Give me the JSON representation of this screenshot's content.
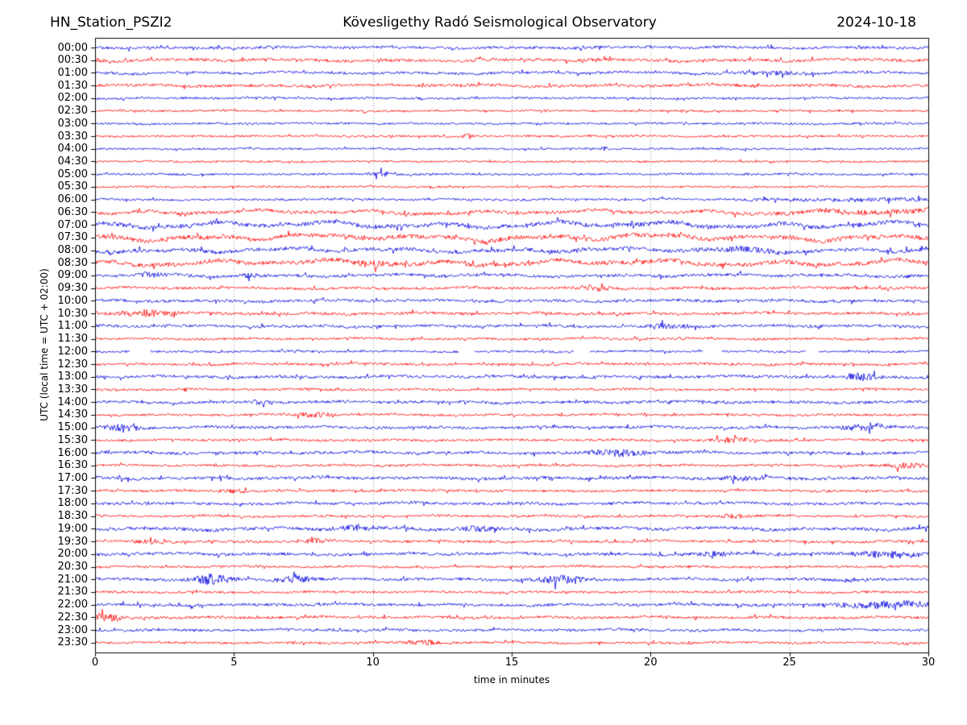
{
  "header": {
    "station": "HN_Station_PSZI2",
    "observatory": "Kövesligethy Radó Seismological Observatory",
    "date": "2024-10-18"
  },
  "chart_data": {
    "type": "line",
    "subtype": "helicorder-daily-seismogram",
    "title": "HN_Station_PSZI2 — Kövesligethy Radó Seismological Observatory — 2024-10-18",
    "xlabel": "time in minutes",
    "ylabel": "UTC (local time = UTC + 02:00)",
    "x_range": [
      0,
      30
    ],
    "x_ticks": [
      0,
      5,
      10,
      15,
      20,
      25,
      30
    ],
    "minutes_per_row": 30,
    "grid": "vertical dotted lines at 5-minute intervals",
    "legend": "none",
    "colors": {
      "trace_blue": "#0000dd",
      "trace_red": "#ff0000",
      "grid": "#999999",
      "axis": "#000000"
    },
    "rows": [
      {
        "time": "00:00",
        "color": "blue",
        "amp": 1.6,
        "wavy": 0.6,
        "events": []
      },
      {
        "time": "00:30",
        "color": "red",
        "amp": 1.8,
        "wavy": 0.8,
        "events": []
      },
      {
        "time": "01:00",
        "color": "blue",
        "amp": 1.6,
        "wavy": 0.7,
        "events": [
          {
            "x": 24.5,
            "a": 0.8,
            "w": 1.0
          }
        ]
      },
      {
        "time": "01:30",
        "color": "red",
        "amp": 1.7,
        "wavy": 0.7,
        "events": []
      },
      {
        "time": "02:00",
        "color": "blue",
        "amp": 1.3,
        "wavy": 0.3,
        "events": []
      },
      {
        "time": "02:30",
        "color": "red",
        "amp": 1.2,
        "wavy": 0.2,
        "events": []
      },
      {
        "time": "03:00",
        "color": "blue",
        "amp": 1.3,
        "wavy": 0.3,
        "events": []
      },
      {
        "time": "03:30",
        "color": "red",
        "amp": 1.2,
        "wavy": 0.2,
        "events": [
          {
            "x": 13.4,
            "a": 2.2,
            "w": 0.15
          }
        ]
      },
      {
        "time": "04:00",
        "color": "blue",
        "amp": 1.2,
        "wavy": 0.2,
        "events": [
          {
            "x": 18.3,
            "a": 1.6,
            "w": 0.15
          }
        ]
      },
      {
        "time": "04:30",
        "color": "red",
        "amp": 1.2,
        "wavy": 0.2,
        "events": []
      },
      {
        "time": "05:00",
        "color": "blue",
        "amp": 1.3,
        "wavy": 0.2,
        "events": [
          {
            "x": 10.4,
            "a": 1.6,
            "w": 0.35
          }
        ]
      },
      {
        "time": "05:30",
        "color": "red",
        "amp": 1.2,
        "wavy": 0.2,
        "events": []
      },
      {
        "time": "06:00",
        "color": "blue",
        "amp": 1.3,
        "wavy": 0.4,
        "events": [
          {
            "x": 27.5,
            "a": 1.0,
            "w": 2.5
          }
        ]
      },
      {
        "time": "06:30",
        "color": "red",
        "amp": 2.0,
        "wavy": 1.5,
        "events": [
          {
            "x": 28.0,
            "a": 0.8,
            "w": 2.0
          }
        ]
      },
      {
        "time": "07:00",
        "color": "blue",
        "amp": 2.6,
        "wavy": 2.2,
        "events": []
      },
      {
        "time": "07:30",
        "color": "red",
        "amp": 2.6,
        "wavy": 2.2,
        "events": []
      },
      {
        "time": "08:00",
        "color": "blue",
        "amp": 2.3,
        "wavy": 1.5,
        "events": [
          {
            "x": 23.5,
            "a": 1.0,
            "w": 0.8
          }
        ]
      },
      {
        "time": "08:30",
        "color": "red",
        "amp": 2.5,
        "wavy": 2.0,
        "events": [
          {
            "x": 10.0,
            "a": 0.8,
            "w": 0.5
          }
        ]
      },
      {
        "time": "09:00",
        "color": "blue",
        "amp": 1.8,
        "wavy": 0.9,
        "events": [
          {
            "x": 2.0,
            "a": 0.9,
            "w": 0.3
          },
          {
            "x": 5.5,
            "a": 0.9,
            "w": 0.3
          }
        ]
      },
      {
        "time": "09:30",
        "color": "red",
        "amp": 1.6,
        "wavy": 0.6,
        "events": [
          {
            "x": 18.0,
            "a": 1.6,
            "w": 0.5
          }
        ]
      },
      {
        "time": "10:00",
        "color": "blue",
        "amp": 1.7,
        "wavy": 0.6,
        "events": []
      },
      {
        "time": "10:30",
        "color": "red",
        "amp": 1.7,
        "wavy": 0.6,
        "events": [
          {
            "x": 1.8,
            "a": 1.8,
            "w": 0.6
          }
        ]
      },
      {
        "time": "11:00",
        "color": "blue",
        "amp": 1.7,
        "wavy": 0.6,
        "events": [
          {
            "x": 20.5,
            "a": 1.2,
            "w": 0.4
          }
        ]
      },
      {
        "time": "11:30",
        "color": "red",
        "amp": 1.4,
        "wavy": 0.4,
        "events": []
      },
      {
        "time": "12:00",
        "color": "blue",
        "amp": 1.3,
        "wavy": 0.3,
        "events": [],
        "gaps": [
          [
            1.25,
            2.0
          ],
          [
            13.1,
            13.65
          ],
          [
            17.25,
            17.8
          ],
          [
            21.9,
            22.55
          ],
          [
            25.6,
            26.05
          ]
        ]
      },
      {
        "time": "12:30",
        "color": "red",
        "amp": 1.5,
        "wavy": 0.5,
        "events": []
      },
      {
        "time": "13:00",
        "color": "blue",
        "amp": 1.7,
        "wavy": 0.6,
        "events": [
          {
            "x": 27.5,
            "a": 2.0,
            "w": 0.5
          }
        ]
      },
      {
        "time": "13:30",
        "color": "red",
        "amp": 1.4,
        "wavy": 0.4,
        "events": []
      },
      {
        "time": "14:00",
        "color": "blue",
        "amp": 1.7,
        "wavy": 0.6,
        "events": [
          {
            "x": 6.0,
            "a": 1.1,
            "w": 0.3
          }
        ]
      },
      {
        "time": "14:30",
        "color": "red",
        "amp": 1.4,
        "wavy": 0.4,
        "events": [
          {
            "x": 7.8,
            "a": 1.5,
            "w": 0.4
          }
        ]
      },
      {
        "time": "15:00",
        "color": "blue",
        "amp": 1.7,
        "wavy": 0.6,
        "events": [
          {
            "x": 1.0,
            "a": 1.8,
            "w": 0.4
          },
          {
            "x": 27.7,
            "a": 2.2,
            "w": 0.5
          }
        ]
      },
      {
        "time": "15:30",
        "color": "red",
        "amp": 1.4,
        "wavy": 0.4,
        "events": [
          {
            "x": 23.0,
            "a": 1.8,
            "w": 0.5
          }
        ]
      },
      {
        "time": "16:00",
        "color": "blue",
        "amp": 1.7,
        "wavy": 0.6,
        "events": [
          {
            "x": 18.8,
            "a": 2.0,
            "w": 0.7
          }
        ]
      },
      {
        "time": "16:30",
        "color": "red",
        "amp": 1.4,
        "wavy": 0.4,
        "events": [
          {
            "x": 29.3,
            "a": 2.0,
            "w": 0.5
          }
        ]
      },
      {
        "time": "17:00",
        "color": "blue",
        "amp": 1.8,
        "wavy": 0.6,
        "events": [
          {
            "x": 23.3,
            "a": 1.2,
            "w": 0.5
          }
        ]
      },
      {
        "time": "17:30",
        "color": "red",
        "amp": 1.4,
        "wavy": 0.4,
        "events": [
          {
            "x": 5.0,
            "a": 1.4,
            "w": 0.3
          }
        ]
      },
      {
        "time": "18:00",
        "color": "blue",
        "amp": 1.7,
        "wavy": 0.6,
        "events": []
      },
      {
        "time": "18:30",
        "color": "red",
        "amp": 1.4,
        "wavy": 0.4,
        "events": [
          {
            "x": 23.0,
            "a": 1.4,
            "w": 0.4
          }
        ]
      },
      {
        "time": "19:00",
        "color": "blue",
        "amp": 2.0,
        "wavy": 1.0,
        "events": [
          {
            "x": 9.5,
            "a": 1.2,
            "w": 0.4
          },
          {
            "x": 13.8,
            "a": 1.2,
            "w": 0.4
          }
        ]
      },
      {
        "time": "19:30",
        "color": "red",
        "amp": 1.5,
        "wavy": 0.5,
        "events": [
          {
            "x": 2.0,
            "a": 1.3,
            "w": 0.4
          },
          {
            "x": 8.0,
            "a": 1.2,
            "w": 0.3
          }
        ]
      },
      {
        "time": "20:00",
        "color": "blue",
        "amp": 1.8,
        "wavy": 0.6,
        "events": [
          {
            "x": 22.3,
            "a": 1.2,
            "w": 0.4
          },
          {
            "x": 28.7,
            "a": 1.6,
            "w": 0.8
          }
        ]
      },
      {
        "time": "20:30",
        "color": "red",
        "amp": 1.4,
        "wavy": 0.4,
        "events": []
      },
      {
        "time": "21:00",
        "color": "blue",
        "amp": 1.7,
        "wavy": 0.6,
        "events": [
          {
            "x": 4.2,
            "a": 3.2,
            "w": 0.45
          },
          {
            "x": 7.2,
            "a": 2.2,
            "w": 0.35
          },
          {
            "x": 16.8,
            "a": 2.4,
            "w": 0.6
          }
        ]
      },
      {
        "time": "21:30",
        "color": "red",
        "amp": 1.4,
        "wavy": 0.4,
        "events": []
      },
      {
        "time": "22:00",
        "color": "blue",
        "amp": 1.7,
        "wavy": 0.6,
        "events": [
          {
            "x": 28.5,
            "a": 1.8,
            "w": 1.2
          }
        ]
      },
      {
        "time": "22:30",
        "color": "red",
        "amp": 1.6,
        "wavy": 0.5,
        "events": [
          {
            "x": 0.4,
            "a": 2.6,
            "w": 0.5
          }
        ]
      },
      {
        "time": "23:00",
        "color": "blue",
        "amp": 1.5,
        "wavy": 0.5,
        "events": []
      },
      {
        "time": "23:30",
        "color": "red",
        "amp": 1.4,
        "wavy": 0.4,
        "events": [
          {
            "x": 11.8,
            "a": 1.8,
            "w": 0.4
          }
        ]
      }
    ]
  }
}
